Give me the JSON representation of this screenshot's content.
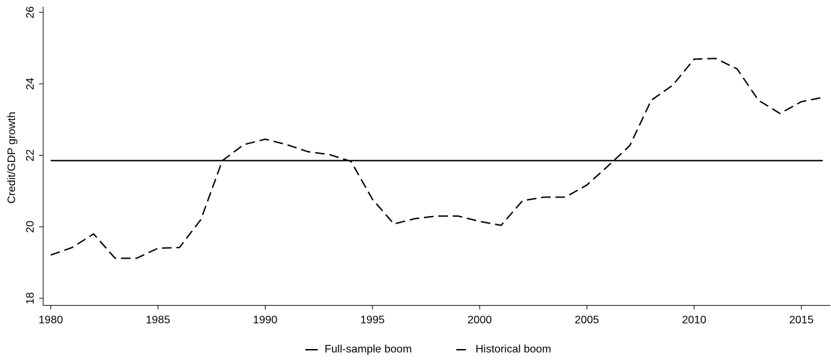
{
  "chart_data": {
    "type": "line",
    "y_label": "Credit/GDP growth",
    "x": [
      1980,
      1981,
      1982,
      1983,
      1984,
      1985,
      1986,
      1987,
      1988,
      1989,
      1990,
      1991,
      1992,
      1993,
      1994,
      1995,
      1996,
      1997,
      1998,
      1999,
      2000,
      2001,
      2002,
      2003,
      2004,
      2005,
      2006,
      2007,
      2008,
      2009,
      2010,
      2011,
      2012,
      2013,
      2014,
      2015,
      2016
    ],
    "series": [
      {
        "name": "Full-sample boom",
        "color": "#000000",
        "dash": false,
        "values": [
          21.85,
          21.85,
          21.85,
          21.85,
          21.85,
          21.85,
          21.85,
          21.85,
          21.85,
          21.85,
          21.85,
          21.85,
          21.85,
          21.85,
          21.85,
          21.85,
          21.85,
          21.85,
          21.85,
          21.85,
          21.85,
          21.85,
          21.85,
          21.85,
          21.85,
          21.85,
          21.85,
          21.85,
          21.85,
          21.85,
          21.85,
          21.85,
          21.85,
          21.85,
          21.85,
          21.85,
          21.85
        ]
      },
      {
        "name": "Historical boom",
        "color": "#000000",
        "dash": true,
        "values": [
          19.21,
          19.42,
          19.8,
          19.12,
          19.12,
          19.4,
          19.42,
          20.2,
          21.85,
          22.3,
          22.45,
          22.3,
          22.1,
          22.02,
          21.83,
          20.77,
          20.08,
          20.23,
          20.3,
          20.3,
          20.15,
          20.04,
          20.73,
          20.83,
          20.83,
          21.17,
          21.71,
          22.27,
          23.54,
          23.96,
          24.69,
          24.71,
          24.42,
          23.54,
          23.17,
          23.5,
          23.62
        ]
      }
    ],
    "xlim": [
      1979.65,
      2016.35
    ],
    "xticks": [
      1980,
      1985,
      1990,
      1995,
      2000,
      2005,
      2010,
      2015
    ],
    "ylim": [
      17.8,
      26
    ],
    "yticks": [
      18,
      20,
      22,
      24,
      26
    ],
    "grid": false,
    "legend": "bottom"
  }
}
